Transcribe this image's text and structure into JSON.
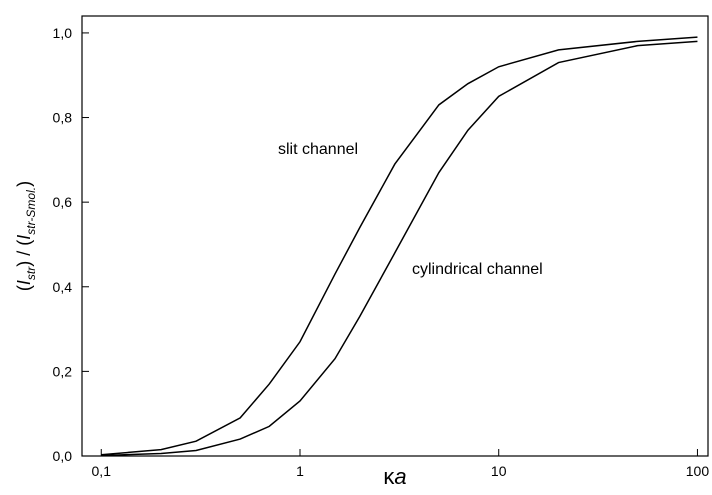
{
  "chart_data": {
    "type": "line",
    "x": [
      0.1,
      0.2,
      0.3,
      0.5,
      0.7,
      1,
      1.5,
      2,
      3,
      5,
      7,
      10,
      20,
      50,
      100
    ],
    "series": [
      {
        "name": "slit channel",
        "color": "#000000",
        "values": [
          0.003,
          0.015,
          0.035,
          0.09,
          0.17,
          0.27,
          0.43,
          0.54,
          0.69,
          0.83,
          0.88,
          0.92,
          0.96,
          0.98,
          0.99
        ]
      },
      {
        "name": "cylindrical channel",
        "color": "#000000",
        "values": [
          0.001,
          0.006,
          0.013,
          0.04,
          0.07,
          0.13,
          0.23,
          0.33,
          0.48,
          0.67,
          0.77,
          0.85,
          0.93,
          0.97,
          0.98
        ]
      }
    ],
    "x_label": [
      "κ",
      "a"
    ],
    "y_label": [
      "(",
      "I",
      "str",
      ") / (",
      "I",
      "str-Smol.",
      ")"
    ],
    "xlog": true,
    "xlim": [
      0.08,
      113
    ],
    "ylim": [
      0,
      1.04
    ],
    "xticks": [
      {
        "value": 0.1,
        "label": "0,1"
      },
      1,
      10,
      100
    ],
    "yticks": [
      {
        "value": 0,
        "label": "0,0"
      },
      {
        "value": 0.2,
        "label": "0,2"
      },
      {
        "value": 0.4,
        "label": "0,4"
      },
      {
        "value": 0.6,
        "label": "0,6"
      },
      {
        "value": 0.8,
        "label": "0,8"
      },
      {
        "value": 1,
        "label": "1,0"
      }
    ],
    "grid": false
  }
}
